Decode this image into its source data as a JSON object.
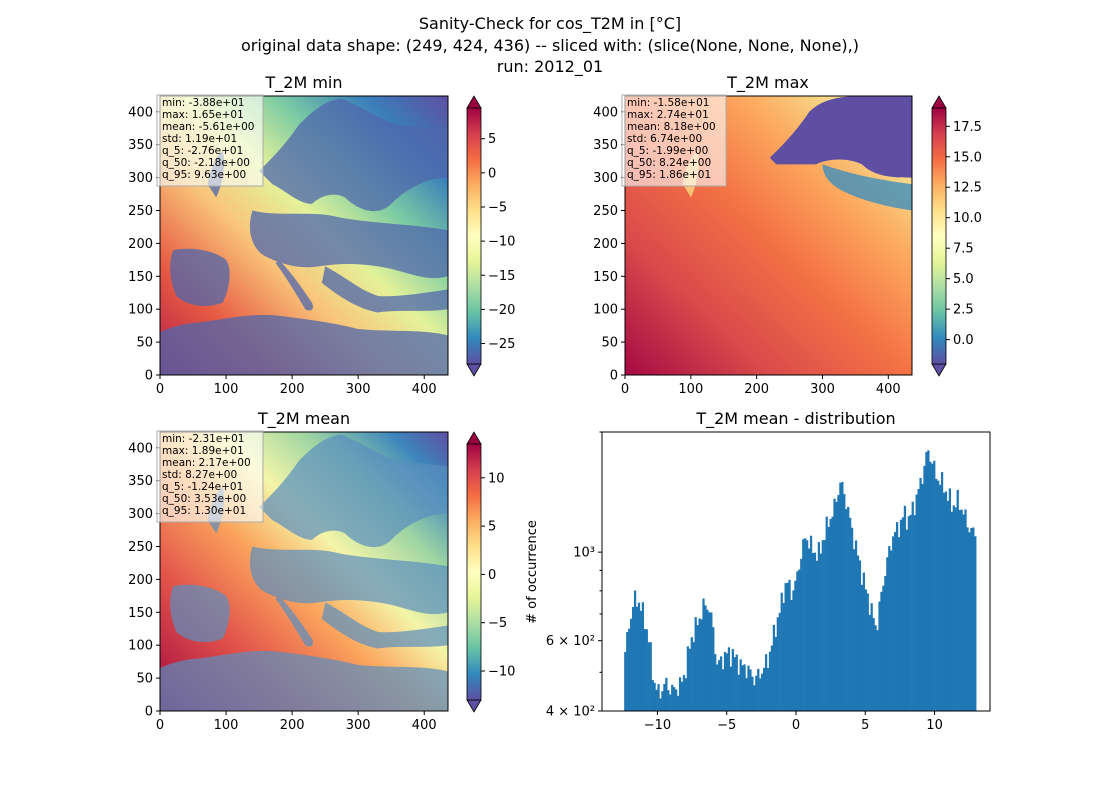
{
  "figure": {
    "title_lines": [
      "Sanity-Check for cos_T2M in [°C]",
      "original data shape: (249, 424, 436) -- sliced with: (slice(None, None, None),)",
      "run: 2012_01"
    ]
  },
  "chart_data": [
    {
      "type": "heatmap",
      "title": "T_2M min",
      "colormap": "Spectral_r",
      "xlim": [
        0,
        436
      ],
      "ylim": [
        0,
        424
      ],
      "xticks": [
        0,
        100,
        200,
        300,
        400
      ],
      "yticks": [
        0,
        50,
        100,
        150,
        200,
        250,
        300,
        350,
        400
      ],
      "colorbar": {
        "vmin": -28,
        "vmax": 9.5,
        "ticks": [
          -25,
          -20,
          -15,
          -10,
          -5,
          0,
          5
        ],
        "tick_labels": [
          "−25",
          "−20",
          "−15",
          "−10",
          "−5",
          "0",
          "5"
        ]
      },
      "stats": [
        "min: -3.88e+01",
        "max: 1.65e+01",
        "mean: -5.61e+00",
        "std: 1.19e+01",
        "q_5: -2.76e+01",
        "q_50: -2.18e+00",
        "q_95: 9.63e+00"
      ]
    },
    {
      "type": "heatmap",
      "title": "T_2M max",
      "colormap": "Spectral_r",
      "xlim": [
        0,
        436
      ],
      "ylim": [
        0,
        424
      ],
      "xticks": [
        0,
        100,
        200,
        300,
        400
      ],
      "yticks": [
        0,
        50,
        100,
        150,
        200,
        250,
        300,
        350,
        400
      ],
      "colorbar": {
        "vmin": -2.0,
        "vmax": 19.0,
        "ticks": [
          0.0,
          2.5,
          5.0,
          7.5,
          10.0,
          12.5,
          15.0,
          17.5
        ],
        "tick_labels": [
          "0.0",
          "2.5",
          "5.0",
          "7.5",
          "10.0",
          "12.5",
          "15.0",
          "17.5"
        ]
      },
      "stats": [
        "min: -1.58e+01",
        "max: 2.74e+01",
        "mean: 8.18e+00",
        "std: 6.74e+00",
        "q_5: -1.99e+00",
        "q_50: 8.24e+00",
        "q_95: 1.86e+01"
      ]
    },
    {
      "type": "heatmap",
      "title": "T_2M mean",
      "colormap": "Spectral_r",
      "xlim": [
        0,
        436
      ],
      "ylim": [
        0,
        424
      ],
      "xticks": [
        0,
        100,
        200,
        300,
        400
      ],
      "yticks": [
        0,
        50,
        100,
        150,
        200,
        250,
        300,
        350,
        400
      ],
      "colorbar": {
        "vmin": -13,
        "vmax": 13.5,
        "ticks": [
          -10,
          -5,
          0,
          5,
          10
        ],
        "tick_labels": [
          "−10",
          "−5",
          "0",
          "5",
          "10"
        ]
      },
      "stats": [
        "min: -2.31e+01",
        "max: 1.89e+01",
        "mean: 2.17e+00",
        "std: 8.27e+00",
        "q_5: -1.24e+01",
        "q_50: 3.53e+00",
        "q_95: 1.30e+01"
      ]
    },
    {
      "type": "bar",
      "title": "T_2M mean - distribution",
      "ylabel": "# of occurrence",
      "xlabel": "",
      "yscale": "log",
      "xlim": [
        -14,
        14
      ],
      "ylim": [
        400,
        2000
      ],
      "xticks": [
        -10,
        -5,
        0,
        5,
        10
      ],
      "xtick_labels": [
        "−10",
        "−5",
        "0",
        "5",
        "10"
      ],
      "ytick_labels": [
        {
          "value": 400,
          "label": "4 × 10²"
        },
        {
          "value": 600,
          "label": "6 × 10²"
        },
        {
          "value": 1000,
          "label": "10³"
        }
      ],
      "color": "#1f77b4",
      "bin_start": -12.4,
      "bin_end": 13.0,
      "x": [
        -12.4,
        -11.7,
        -11.3,
        -11.0,
        -10.6,
        -10.3,
        -9.9,
        -9.4,
        -9.0,
        -8.4,
        -8.0,
        -7.6,
        -7.0,
        -6.6,
        -6.3,
        -6.0,
        -5.7,
        -5.3,
        -4.9,
        -4.5,
        -4.0,
        -3.5,
        -3.0,
        -2.5,
        -2.0,
        -1.6,
        -1.1,
        -0.7,
        -0.3,
        0.0,
        0.3,
        0.7,
        1.0,
        1.3,
        1.7,
        2.0,
        2.4,
        2.8,
        3.2,
        3.6,
        4.0,
        4.4,
        4.8,
        5.1,
        5.5,
        5.8,
        6.2,
        6.6,
        7.0,
        7.4,
        7.8,
        8.1,
        8.5,
        8.9,
        9.2,
        9.5,
        9.8,
        10.1,
        10.5,
        10.9,
        11.3,
        11.7,
        12.1,
        12.5,
        13.0
      ],
      "values": [
        540,
        760,
        750,
        690,
        600,
        480,
        440,
        470,
        450,
        460,
        500,
        600,
        680,
        740,
        730,
        650,
        520,
        540,
        560,
        550,
        520,
        510,
        480,
        500,
        540,
        620,
        730,
        850,
        790,
        840,
        960,
        1100,
        1050,
        1000,
        990,
        1100,
        1200,
        1300,
        1500,
        1350,
        1150,
        1000,
        870,
        790,
        700,
        640,
        800,
        960,
        1100,
        1150,
        1250,
        1200,
        1300,
        1450,
        1600,
        1800,
        1700,
        1550,
        1500,
        1400,
        1300,
        1350,
        1250,
        1150,
        1100
      ]
    }
  ]
}
